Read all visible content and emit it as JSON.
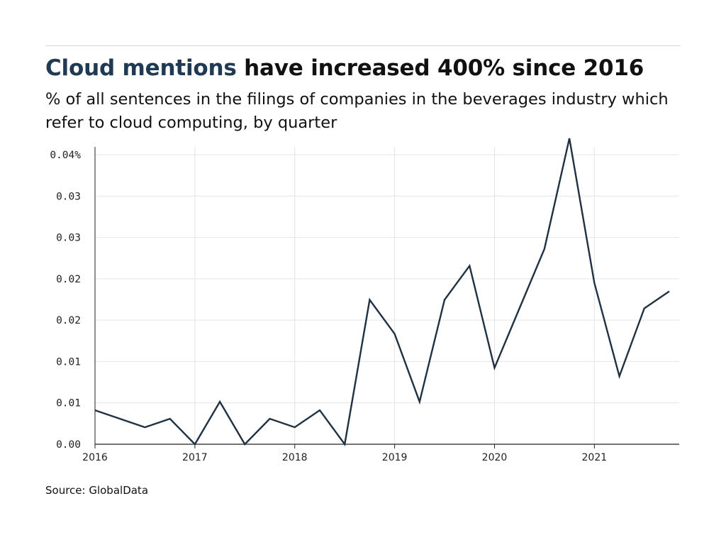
{
  "header": {
    "title_highlight": "Cloud mentions",
    "title_rest": " have increased 400% since 2016",
    "subtitle": "% of all sentences in the filings of companies in the beverages industry which refer to cloud computing, by quarter"
  },
  "footer": {
    "source": "Source: GlobalData"
  },
  "colors": {
    "accent": "#1f3a52",
    "line": "#1f3142",
    "grid": "#e4e4e4"
  },
  "chart_data": {
    "type": "line",
    "title": "",
    "xlabel": "",
    "ylabel": "",
    "grid": true,
    "legend": "none",
    "x_tick_labels": [
      "2016",
      "2017",
      "2018",
      "2019",
      "2020",
      "2021"
    ],
    "y_tick_labels": [
      "0.00",
      "0.01",
      "0.01",
      "0.02",
      "0.02",
      "0.03",
      "0.03",
      "0.04%"
    ],
    "ylim": [
      0,
      0.035
    ],
    "series": [
      {
        "x": [
          "2016 Q1",
          "2016 Q2",
          "2016 Q3",
          "2016 Q4",
          "2017 Q1",
          "2017 Q2",
          "2017 Q3",
          "2017 Q4",
          "2018 Q1",
          "2018 Q2",
          "2018 Q3",
          "2018 Q4",
          "2019 Q1",
          "2019 Q2",
          "2019 Q3",
          "2019 Q4",
          "2020 Q1",
          "2020 Q2",
          "2020 Q3",
          "2020 Q4",
          "2021 Q1",
          "2021 Q2",
          "2021 Q3",
          "2021 Q4"
        ],
        "values": [
          0.004,
          0.003,
          0.002,
          0.003,
          0.0,
          0.005,
          0.0,
          0.003,
          0.002,
          0.004,
          0.0,
          0.017,
          0.013,
          0.005,
          0.017,
          0.021,
          0.009,
          0.016,
          0.023,
          0.036,
          0.019,
          0.008,
          0.016,
          0.018
        ]
      }
    ]
  }
}
